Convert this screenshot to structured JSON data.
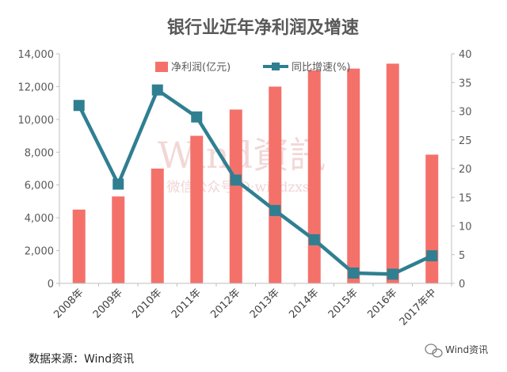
{
  "chart_data": {
    "type": "bar+line",
    "title": "银行业近年净利润及增速",
    "categories": [
      "2008年",
      "2009年",
      "2010年",
      "2011年",
      "2012年",
      "2013年",
      "2014年",
      "2015年",
      "2016年",
      "2017年中"
    ],
    "series": [
      {
        "name": "净利润(亿元)",
        "type": "bar",
        "axis": "left",
        "values": [
          4500,
          5300,
          7000,
          9000,
          10600,
          12000,
          13000,
          13100,
          13400,
          7850
        ]
      },
      {
        "name": "同比增速(%)",
        "type": "line",
        "axis": "right",
        "values": [
          31.0,
          17.3,
          33.7,
          29.0,
          18.0,
          12.7,
          7.6,
          1.8,
          1.6,
          4.8
        ]
      }
    ],
    "y_left": {
      "min": 0,
      "max": 14000,
      "step": 2000,
      "ticks": [
        "0",
        "2,000",
        "4,000",
        "6,000",
        "8,000",
        "10,000",
        "12,000",
        "14,000"
      ]
    },
    "y_right": {
      "min": 0,
      "max": 40,
      "step": 5,
      "ticks": [
        "0",
        "5",
        "10",
        "15",
        "20",
        "25",
        "30",
        "35",
        "40"
      ]
    },
    "legend_position": "top",
    "grid": false
  },
  "colors": {
    "bar": "#f4716a",
    "line": "#2f7f91",
    "axis": "#bfbfbf"
  },
  "watermark": {
    "main": "Wind資訊",
    "sub": "微信公众号ID:windzxsh"
  },
  "footer": {
    "source": "数据来源：Wind资讯",
    "brand": "Wind资讯"
  }
}
